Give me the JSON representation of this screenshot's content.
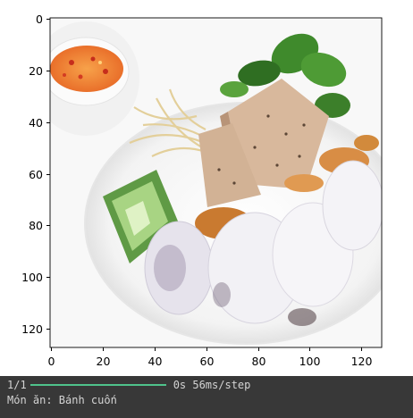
{
  "image_alt": "Bánh cuốn",
  "plot": {
    "y_ticks": [
      "0",
      "20",
      "40",
      "60",
      "80",
      "100",
      "120"
    ],
    "x_ticks": [
      "0",
      "20",
      "40",
      "60",
      "80",
      "100",
      "120"
    ]
  },
  "console": {
    "progress_step": "1/1",
    "progress_fraction": 1.0,
    "progress_time": "0s 56ms/step",
    "result_text": "Món ăn: Bánh cuốn"
  },
  "colors": {
    "progress_bar": "#4fc38b",
    "console_background": "#383838",
    "console_text": "#d4d4d4"
  }
}
